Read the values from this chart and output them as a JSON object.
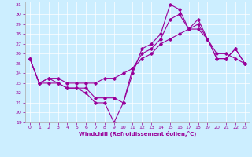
{
  "xlabel": "Windchill (Refroidissement éolien,°C)",
  "background_color": "#cceeff",
  "line_color": "#990099",
  "xlim": [
    -0.5,
    23.5
  ],
  "ylim": [
    19,
    31.3
  ],
  "yticks": [
    19,
    20,
    21,
    22,
    23,
    24,
    25,
    26,
    27,
    28,
    29,
    30,
    31
  ],
  "xticks": [
    0,
    1,
    2,
    3,
    4,
    5,
    6,
    7,
    8,
    9,
    10,
    11,
    12,
    13,
    14,
    15,
    16,
    17,
    18,
    19,
    20,
    21,
    22,
    23
  ],
  "line1_x": [
    0,
    1,
    2,
    3,
    4,
    5,
    6,
    7,
    8,
    9,
    10,
    11,
    12,
    13,
    14,
    15,
    16,
    17,
    18,
    19,
    20,
    21,
    22,
    23
  ],
  "line1_y": [
    25.5,
    23.0,
    23.0,
    23.0,
    22.5,
    22.5,
    22.0,
    21.0,
    21.0,
    19.0,
    21.0,
    24.0,
    26.5,
    27.0,
    28.0,
    31.0,
    30.5,
    28.5,
    29.0,
    27.5,
    26.0,
    26.0,
    25.5,
    25.0
  ],
  "line2_x": [
    0,
    1,
    2,
    3,
    4,
    5,
    6,
    7,
    8,
    9,
    10,
    11,
    12,
    13,
    14,
    15,
    16,
    17,
    18,
    19,
    20,
    21,
    22,
    23
  ],
  "line2_y": [
    25.5,
    23.0,
    23.5,
    23.0,
    22.5,
    22.5,
    22.5,
    21.5,
    21.5,
    21.5,
    21.0,
    24.5,
    26.0,
    26.5,
    27.5,
    29.5,
    30.0,
    28.5,
    29.5,
    27.5,
    25.5,
    25.5,
    26.5,
    25.0
  ],
  "line3_x": [
    0,
    1,
    2,
    3,
    4,
    5,
    6,
    7,
    8,
    9,
    10,
    11,
    12,
    13,
    14,
    15,
    16,
    17,
    18,
    19,
    20,
    21,
    22,
    23
  ],
  "line3_y": [
    25.5,
    23.0,
    23.5,
    23.5,
    23.0,
    23.0,
    23.0,
    23.0,
    23.5,
    23.5,
    24.0,
    24.5,
    25.5,
    26.0,
    27.0,
    27.5,
    28.0,
    28.5,
    28.5,
    27.5,
    25.5,
    25.5,
    26.5,
    25.0
  ]
}
